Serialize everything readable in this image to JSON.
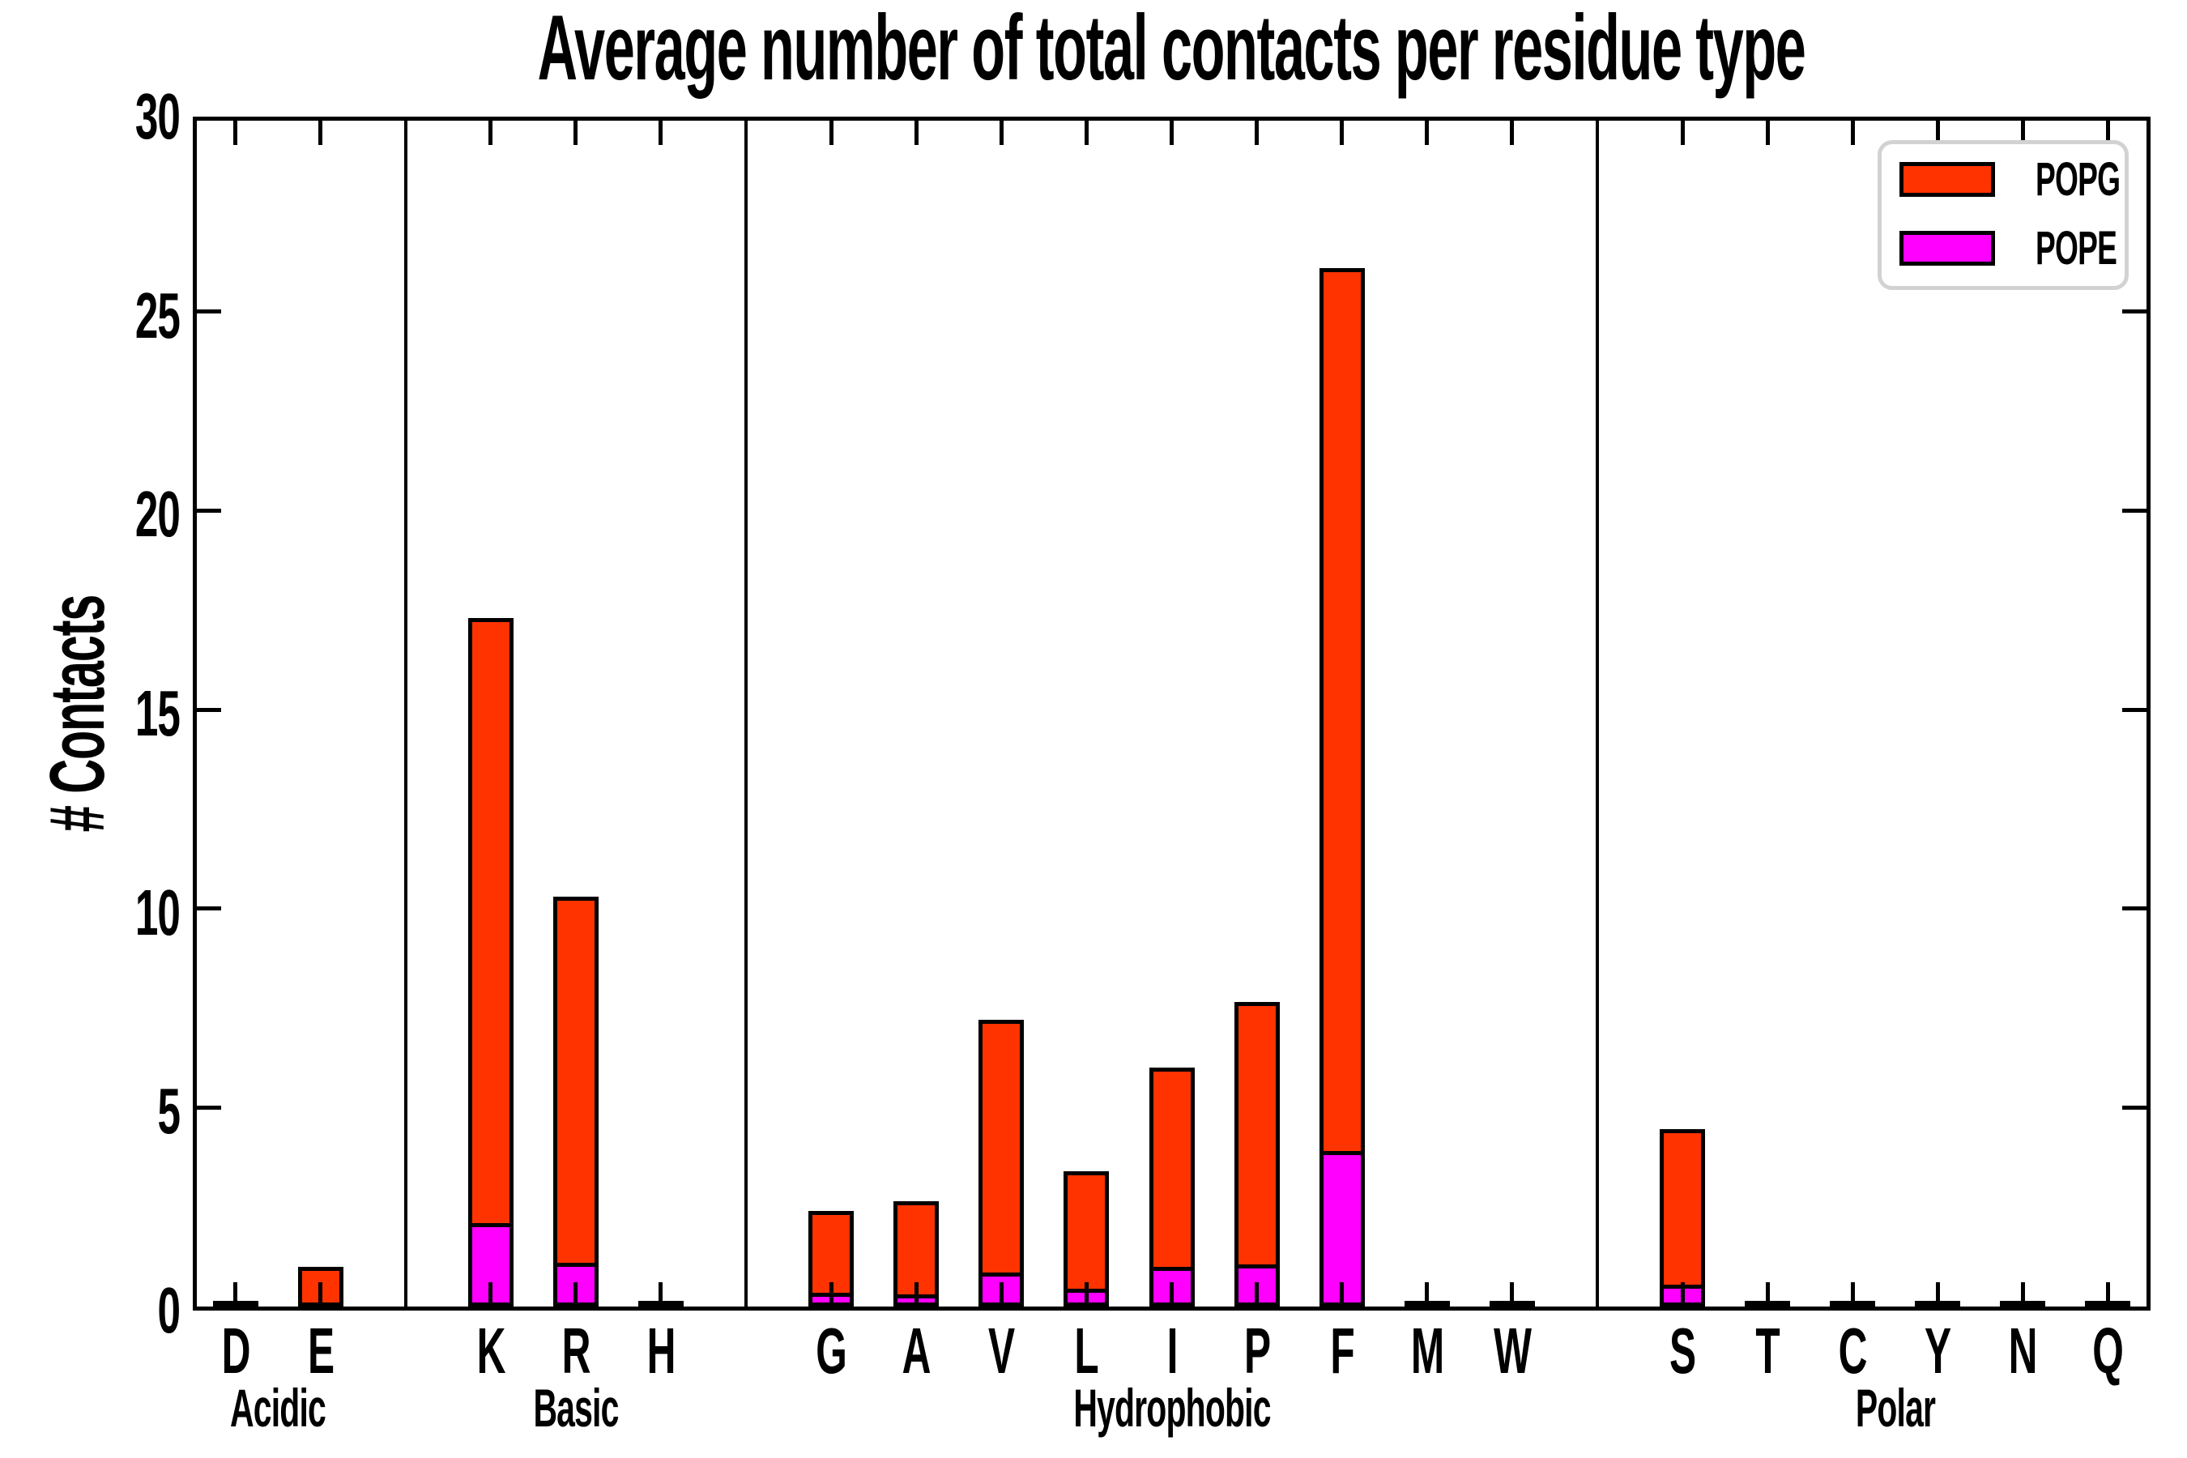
{
  "title": "Average number of total contacts per residue type",
  "ylabel": "# Contacts",
  "colors": {
    "popg": "#FF3300",
    "pope": "#FF00FF",
    "axis": "#000000",
    "legend_border": "#D2D2D2",
    "background": "#FFFFFF"
  },
  "legend": {
    "position": "upper right",
    "entries": [
      {
        "label": "POPG",
        "color": "#FF3300"
      },
      {
        "label": "POPE",
        "color": "#FF00FF"
      }
    ]
  },
  "chart_data": {
    "type": "bar",
    "stacked": true,
    "title": "Average number of total contacts per residue type",
    "xlabel": "",
    "ylabel": "# Contacts",
    "ylim": [
      0,
      30
    ],
    "yticks": [
      0,
      5,
      10,
      15,
      20,
      25,
      30
    ],
    "yticklabels": [
      "0",
      "5",
      "10",
      "15",
      "20",
      "25",
      "30"
    ],
    "grid": false,
    "legend_position": "upper right",
    "categories": [
      "D",
      "E",
      "K",
      "R",
      "H",
      "G",
      "A",
      "V",
      "L",
      "I",
      "P",
      "F",
      "M",
      "W",
      "S",
      "T",
      "C",
      "Y",
      "N",
      "Q"
    ],
    "groups": [
      {
        "label": "Acidic",
        "categories": [
          "D",
          "E"
        ]
      },
      {
        "label": "Basic",
        "categories": [
          "K",
          "R",
          "H"
        ]
      },
      {
        "label": "Hydrophobic",
        "categories": [
          "G",
          "A",
          "V",
          "L",
          "I",
          "P",
          "F",
          "M",
          "W"
        ]
      },
      {
        "label": "Polar",
        "categories": [
          "S",
          "T",
          "C",
          "Y",
          "N",
          "Q"
        ]
      }
    ],
    "series": [
      {
        "name": "POPE",
        "color": "#FF00FF",
        "stack": "bottom",
        "values": {
          "D": 0,
          "E": 0,
          "K": 2.0,
          "R": 1.0,
          "H": 0,
          "G": 0.25,
          "A": 0.2,
          "V": 0.75,
          "L": 0.35,
          "I": 0.9,
          "P": 0.95,
          "F": 3.8,
          "M": 0,
          "W": 0,
          "S": 0.45,
          "T": 0,
          "C": 0,
          "Y": 0,
          "N": 0,
          "Q": 0
        }
      },
      {
        "name": "POPG",
        "color": "#FF3300",
        "stack": "top",
        "values": {
          "D": 0,
          "E": 1.0,
          "K": 15.3,
          "R": 9.3,
          "H": 0,
          "G": 2.15,
          "A": 2.45,
          "V": 6.45,
          "L": 3.05,
          "I": 5.1,
          "P": 6.7,
          "F": 22.3,
          "M": 0,
          "W": 0,
          "S": 4.0,
          "T": 0,
          "C": 0,
          "Y": 0,
          "N": 0,
          "Q": 0
        }
      }
    ],
    "totals": {
      "D": 0,
      "E": 1.0,
      "K": 17.3,
      "R": 10.3,
      "H": 0,
      "G": 2.4,
      "A": 2.65,
      "V": 7.2,
      "L": 3.4,
      "I": 6.0,
      "P": 7.65,
      "F": 26.1,
      "M": 0,
      "W": 0,
      "S": 4.45,
      "T": 0,
      "C": 0,
      "Y": 0,
      "N": 0,
      "Q": 0
    }
  }
}
